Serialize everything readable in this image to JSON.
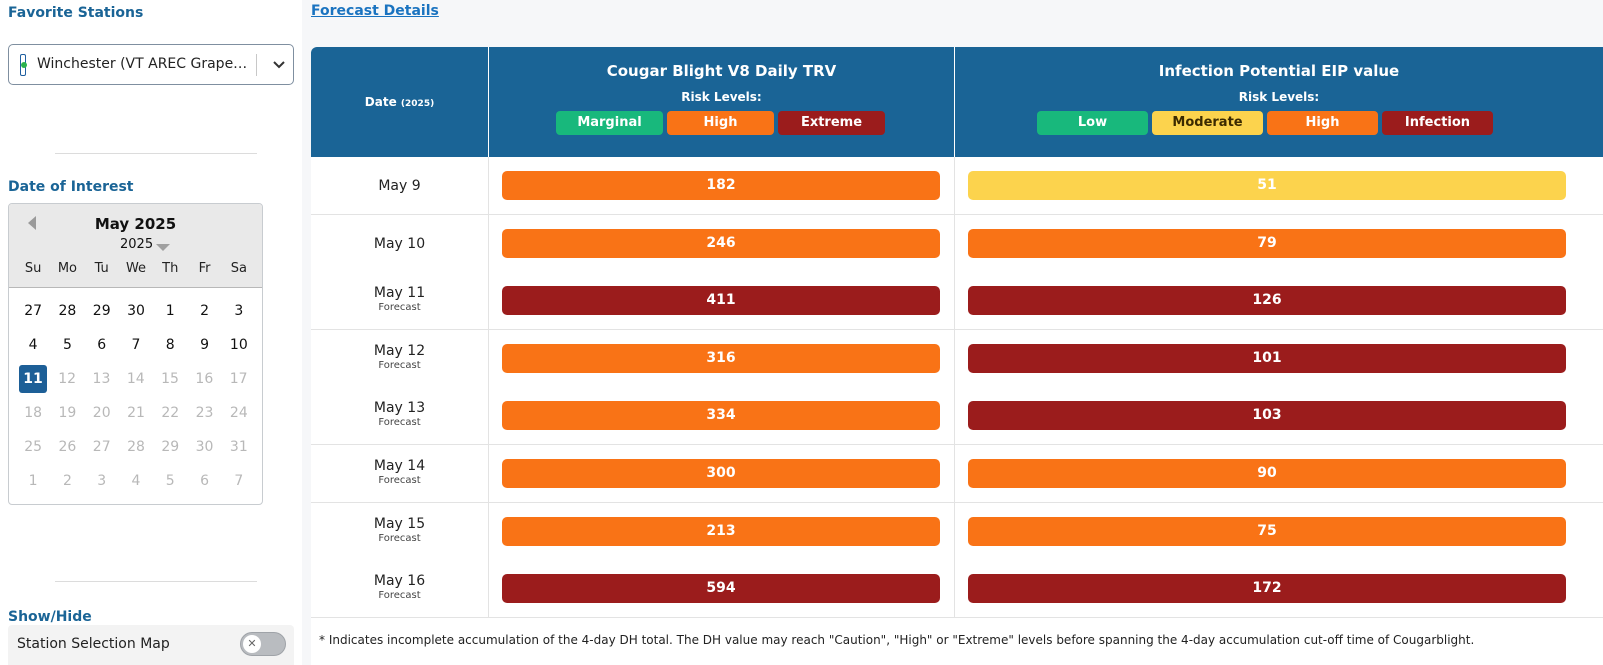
{
  "sidebar": {
    "favorite_title": "Favorite Stations",
    "station_selected": "Winchester (VT AREC Grape…",
    "date_title": "Date of Interest",
    "calendar": {
      "month": "May 2025",
      "year": "2025",
      "dows": [
        "Su",
        "Mo",
        "Tu",
        "We",
        "Th",
        "Fr",
        "Sa"
      ],
      "weeks": [
        [
          {
            "d": "27",
            "m": false
          },
          {
            "d": "28",
            "m": false
          },
          {
            "d": "29",
            "m": false
          },
          {
            "d": "30",
            "m": false
          },
          {
            "d": "1",
            "m": false
          },
          {
            "d": "2",
            "m": false
          },
          {
            "d": "3",
            "m": false
          }
        ],
        [
          {
            "d": "4",
            "m": false
          },
          {
            "d": "5",
            "m": false
          },
          {
            "d": "6",
            "m": false
          },
          {
            "d": "7",
            "m": false
          },
          {
            "d": "8",
            "m": false
          },
          {
            "d": "9",
            "m": false
          },
          {
            "d": "10",
            "m": false
          }
        ],
        [
          {
            "d": "11",
            "m": false,
            "sel": true
          },
          {
            "d": "12",
            "m": true
          },
          {
            "d": "13",
            "m": true
          },
          {
            "d": "14",
            "m": true
          },
          {
            "d": "15",
            "m": true
          },
          {
            "d": "16",
            "m": true
          },
          {
            "d": "17",
            "m": true
          }
        ],
        [
          {
            "d": "18",
            "m": true
          },
          {
            "d": "19",
            "m": true
          },
          {
            "d": "20",
            "m": true
          },
          {
            "d": "21",
            "m": true
          },
          {
            "d": "22",
            "m": true
          },
          {
            "d": "23",
            "m": true
          },
          {
            "d": "24",
            "m": true
          }
        ],
        [
          {
            "d": "25",
            "m": true
          },
          {
            "d": "26",
            "m": true
          },
          {
            "d": "27",
            "m": true
          },
          {
            "d": "28",
            "m": true
          },
          {
            "d": "29",
            "m": true
          },
          {
            "d": "30",
            "m": true
          },
          {
            "d": "31",
            "m": true
          }
        ],
        [
          {
            "d": "1",
            "m": true
          },
          {
            "d": "2",
            "m": true
          },
          {
            "d": "3",
            "m": true
          },
          {
            "d": "4",
            "m": true
          },
          {
            "d": "5",
            "m": true
          },
          {
            "d": "6",
            "m": true
          },
          {
            "d": "7",
            "m": true
          }
        ]
      ]
    },
    "showhide_title": "Show/Hide",
    "toggle_label": "Station Selection Map",
    "toggle_state": false
  },
  "main": {
    "link": "Forecast Details",
    "header": {
      "date": "Date",
      "date_year": "(2025)",
      "trv_title": "Cougar Blight V8 Daily TRV",
      "eip_title": "Infection Potential EIP value",
      "risk_label": "Risk Levels:",
      "trv_levels": [
        {
          "label": "Marginal",
          "color": "green"
        },
        {
          "label": "High",
          "color": "orange"
        },
        {
          "label": "Extreme",
          "color": "red"
        }
      ],
      "eip_levels": [
        {
          "label": "Low",
          "color": "green"
        },
        {
          "label": "Moderate",
          "color": "yellow"
        },
        {
          "label": "High",
          "color": "orange"
        },
        {
          "label": "Infection",
          "color": "red"
        }
      ]
    },
    "rows": [
      {
        "date": "May 9",
        "sub": "",
        "trv": "182",
        "trv_color": "orange",
        "eip": "51",
        "eip_color": "yellow"
      },
      {
        "date": "May 10",
        "sub": "",
        "trv": "246",
        "trv_color": "orange",
        "eip": "79",
        "eip_color": "orange"
      },
      {
        "date": "May 11",
        "sub": "Forecast",
        "trv": "411",
        "trv_color": "red",
        "eip": "126",
        "eip_color": "red"
      },
      {
        "date": "May 12",
        "sub": "Forecast",
        "trv": "316",
        "trv_color": "orange",
        "eip": "101",
        "eip_color": "red"
      },
      {
        "date": "May 13",
        "sub": "Forecast",
        "trv": "334",
        "trv_color": "orange",
        "eip": "103",
        "eip_color": "red"
      },
      {
        "date": "May 14",
        "sub": "Forecast",
        "trv": "300",
        "trv_color": "orange",
        "eip": "90",
        "eip_color": "orange"
      },
      {
        "date": "May 15",
        "sub": "Forecast",
        "trv": "213",
        "trv_color": "orange",
        "eip": "75",
        "eip_color": "orange"
      },
      {
        "date": "May 16",
        "sub": "Forecast",
        "trv": "594",
        "trv_color": "red",
        "eip": "172",
        "eip_color": "red"
      }
    ],
    "footnote": "* Indicates incomplete accumulation of the 4-day DH total. The DH value may reach \"Caution\", \"High\" or \"Extreme\" levels before spanning the 4-day accumulation cut-off time of Cougarblight."
  },
  "colors": {
    "green": "#18b87c",
    "orange": "#f97316",
    "red": "#9b1c1c",
    "yellow": "#fcd34d",
    "header_blue": "#1a6496",
    "link_blue": "#1a73c0",
    "selected_day": "#1d5f97"
  },
  "icons": {
    "station_marker": "station-marker-icon",
    "dropdown": "chevron-down-icon",
    "calendar_prev": "triangle-left-icon",
    "year_caret": "triangle-down-icon",
    "toggle_off": "x-icon"
  }
}
